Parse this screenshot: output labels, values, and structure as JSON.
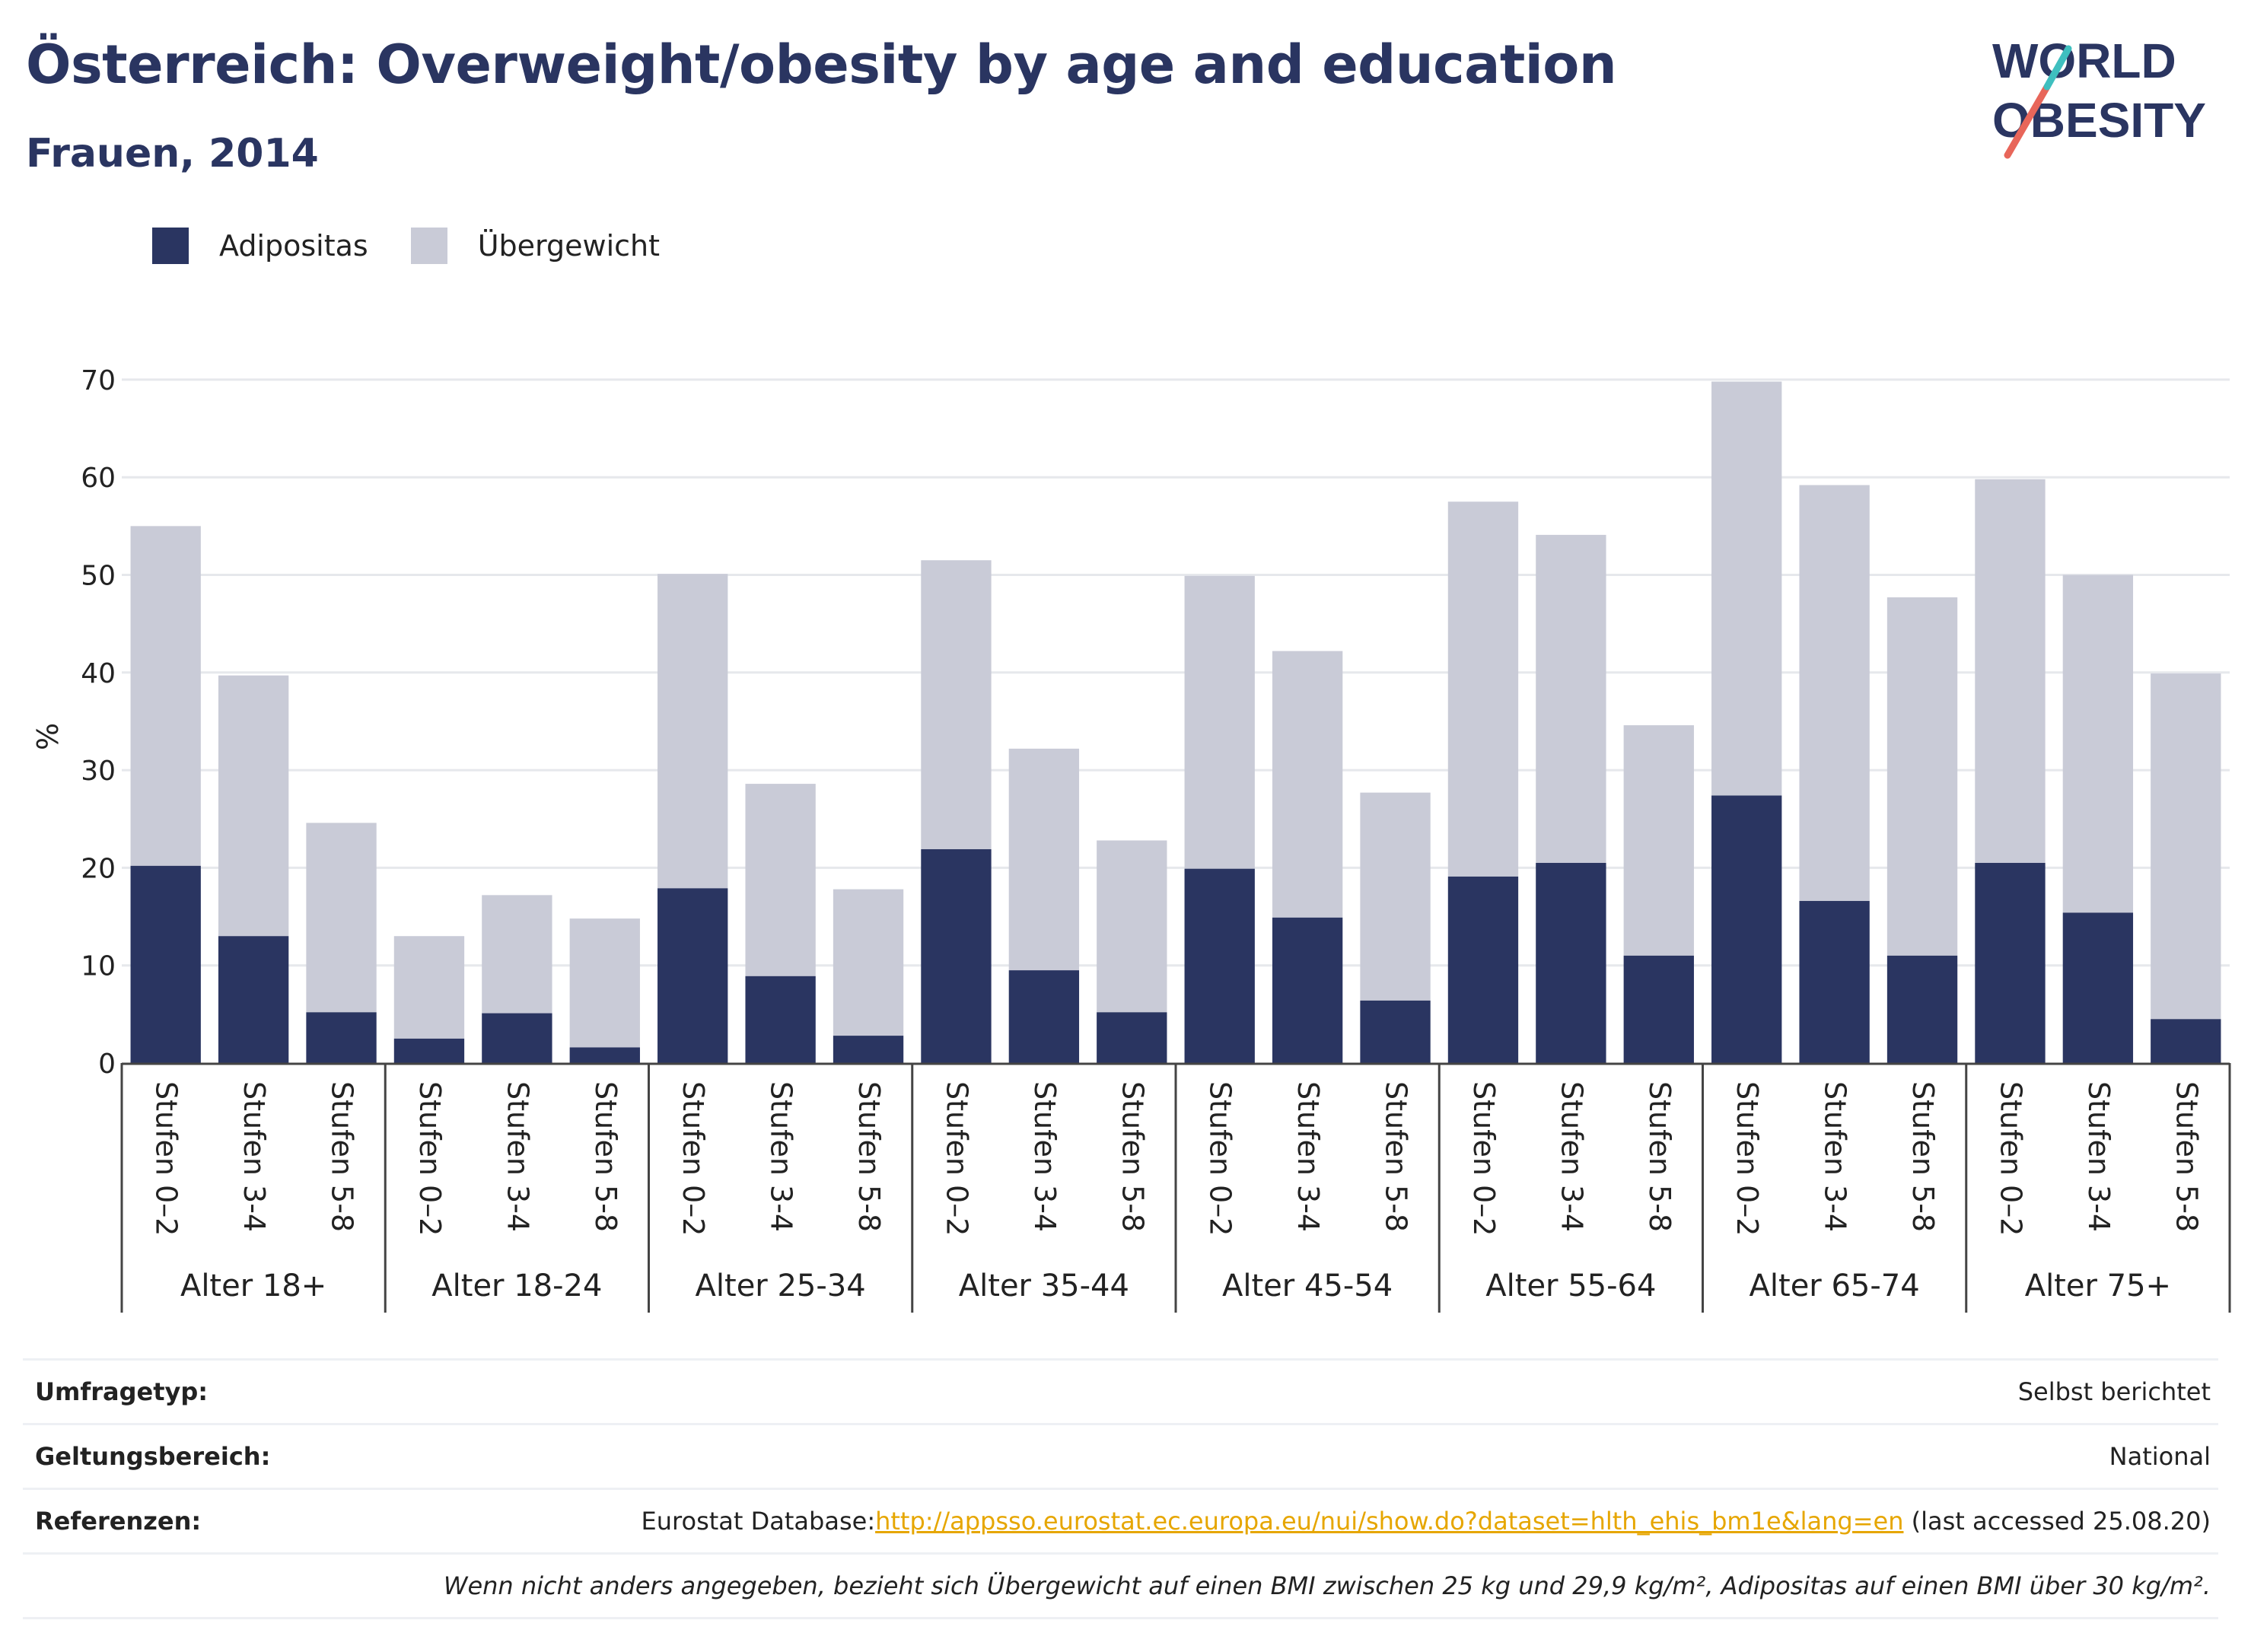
{
  "header": {
    "title": "Österreich: Overweight/obesity by age and education",
    "subtitle": "Frauen, 2014"
  },
  "logo": {
    "line1": "WORLD",
    "line2": "OBESITY"
  },
  "legend": {
    "items": [
      {
        "label": "Adipositas",
        "color": "#2a3561"
      },
      {
        "label": "Übergewicht",
        "color": "#c9cbd7"
      }
    ]
  },
  "chart_data": {
    "type": "bar",
    "stacked": true,
    "ylabel": "%",
    "ylim": [
      0,
      70
    ],
    "yticks": [
      0,
      10,
      20,
      30,
      40,
      50,
      60,
      70
    ],
    "grid": true,
    "legend_position": "top-left",
    "groups": [
      "Alter 18+",
      "Alter 18-24",
      "Alter 25-34",
      "Alter 35-44",
      "Alter 45-54",
      "Alter 55-64",
      "Alter 65-74",
      "Alter 75+"
    ],
    "subcategories": [
      "Stufen 0–2",
      "Stufen 3-4",
      "Stufen 5-8"
    ],
    "series": [
      {
        "name": "Adipositas",
        "color": "#2a3561",
        "values": [
          20.2,
          13.0,
          5.2,
          2.5,
          5.1,
          1.6,
          17.9,
          8.9,
          2.8,
          21.9,
          9.5,
          5.2,
          19.9,
          14.9,
          6.4,
          19.1,
          20.5,
          11.0,
          27.4,
          16.6,
          11.0,
          20.5,
          15.4,
          4.5
        ]
      },
      {
        "name": "Übergewicht",
        "color": "#c9cbd7",
        "values": [
          34.8,
          26.7,
          19.4,
          10.5,
          12.1,
          13.2,
          32.2,
          19.7,
          15.0,
          29.6,
          22.7,
          17.6,
          30.0,
          27.3,
          21.3,
          38.4,
          33.6,
          23.6,
          42.4,
          42.6,
          36.7,
          39.3,
          34.6,
          35.4
        ]
      }
    ]
  },
  "footer": {
    "survey_label": "Umfragetyp:",
    "survey_value": "Selbst berichtet",
    "scope_label": "Geltungsbereich:",
    "scope_value": "National",
    "ref_label": "Referenzen:",
    "ref_prefix": "Eurostat Database:",
    "ref_link": "http://appsso.eurostat.ec.europa.eu/nui/show.do?dataset=hlth_ehis_bm1e&lang=en",
    "ref_suffix": " (last accessed 25.08.20)",
    "note": "Wenn nicht anders angegeben, bezieht sich Übergewicht auf einen BMI zwischen 25 kg und 29,9 kg/m², Adipositas auf einen BMI über 30 kg/m²."
  }
}
